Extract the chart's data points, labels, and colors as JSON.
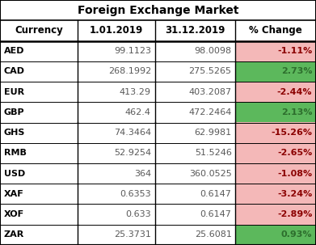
{
  "title": "Foreign Exchange Market",
  "col_headers": [
    "Currency",
    "1.01.2019",
    "31.12.2019",
    "% Change"
  ],
  "rows": [
    {
      "currency": "AED",
      "val1": "99.1123",
      "val2": "98.0098",
      "change": "-1.11%",
      "positive": false
    },
    {
      "currency": "CAD",
      "val1": "268.1992",
      "val2": "275.5265",
      "change": "2.73%",
      "positive": true
    },
    {
      "currency": "EUR",
      "val1": "413.29",
      "val2": "403.2087",
      "change": "-2.44%",
      "positive": false
    },
    {
      "currency": "GBP",
      "val1": "462.4",
      "val2": "472.2464",
      "change": "2.13%",
      "positive": true
    },
    {
      "currency": "GHS",
      "val1": "74.3464",
      "val2": "62.9981",
      "change": "-15.26%",
      "positive": false
    },
    {
      "currency": "RMB",
      "val1": "52.9254",
      "val2": "51.5246",
      "change": "-2.65%",
      "positive": false
    },
    {
      "currency": "USD",
      "val1": "364",
      "val2": "360.0525",
      "change": "-1.08%",
      "positive": false
    },
    {
      "currency": "XAF",
      "val1": "0.6353",
      "val2": "0.6147",
      "change": "-3.24%",
      "positive": false
    },
    {
      "currency": "XOF",
      "val1": "0.633",
      "val2": "0.6147",
      "change": "-2.89%",
      "positive": false
    },
    {
      "currency": "ZAR",
      "val1": "25.3731",
      "val2": "25.6081",
      "change": "0.93%",
      "positive": true
    }
  ],
  "color_positive": "#5cb85c",
  "color_negative": "#f4b8b8",
  "color_border": "#000000",
  "color_text_change_pos": "#2d6e2d",
  "color_text_change_neg": "#8b0000",
  "color_text_currency": "#000000",
  "color_text_values": "#595959",
  "title_fontsize": 10,
  "header_fontsize": 8.5,
  "cell_fontsize": 8.0,
  "fig_width": 3.91,
  "fig_height": 3.03,
  "dpi": 100
}
